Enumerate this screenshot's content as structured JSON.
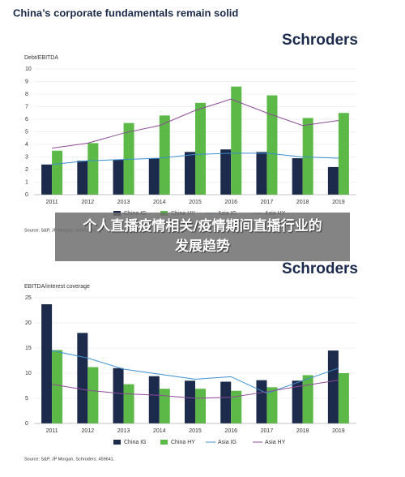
{
  "title": "China’s corporate fundamentals remain solid",
  "overlay": "个人直播疫情相关/疫情期间直播行业的发展趋势",
  "chart_data": [
    {
      "type": "bar",
      "brand": "Schroders",
      "y_label": "Debt/EBITDA",
      "source": "Source: S&P, JP Morgan, Schroders.",
      "categories": [
        "2011",
        "2012",
        "2013",
        "2014",
        "2015",
        "2016",
        "2017",
        "2018",
        "2019"
      ],
      "ylim": [
        0,
        10
      ],
      "yticks": [
        0,
        1,
        2,
        3,
        4,
        5,
        6,
        7,
        8,
        9,
        10
      ],
      "grid": true,
      "series": [
        {
          "name": "China IG",
          "type": "bar",
          "color": "#1c2b4b",
          "values": [
            2.4,
            2.7,
            2.8,
            2.9,
            3.4,
            3.6,
            3.4,
            2.9,
            2.2
          ]
        },
        {
          "name": "China HY",
          "type": "bar",
          "color": "#5cb847",
          "values": [
            3.5,
            4.1,
            5.7,
            6.3,
            7.3,
            8.6,
            7.9,
            6.1,
            6.5
          ]
        },
        {
          "name": "Asia IG",
          "type": "line",
          "color": "#3b8fd0",
          "values": [
            2.4,
            2.7,
            2.8,
            2.9,
            3.2,
            3.3,
            3.3,
            3.0,
            2.9
          ]
        },
        {
          "name": "Asia HY",
          "type": "line",
          "color": "#8e4a9a",
          "values": [
            3.7,
            4.1,
            4.9,
            5.5,
            6.7,
            7.6,
            6.5,
            5.5,
            5.9
          ]
        }
      ]
    },
    {
      "type": "bar",
      "brand": "Schroders",
      "y_label": "EBITDA/interest coverage",
      "source": "Source: S&P, JP Morgan, Schroders. 459641.",
      "categories": [
        "2011",
        "2012",
        "2013",
        "2014",
        "2015",
        "2016",
        "2017",
        "2018",
        "2019"
      ],
      "ylim": [
        0,
        25
      ],
      "yticks": [
        0,
        5,
        10,
        15,
        20,
        25
      ],
      "grid": true,
      "series": [
        {
          "name": "China IG",
          "type": "bar",
          "color": "#1c2b4b",
          "values": [
            23.7,
            18.0,
            11.0,
            9.4,
            8.5,
            8.3,
            8.6,
            8.5,
            14.5
          ]
        },
        {
          "name": "China HY",
          "type": "bar",
          "color": "#5cb847",
          "values": [
            14.6,
            11.2,
            7.8,
            6.9,
            6.9,
            6.5,
            7.2,
            9.6,
            10.0
          ]
        },
        {
          "name": "Asia IG",
          "type": "line",
          "color": "#3b8fd0",
          "values": [
            14.5,
            13.0,
            10.8,
            9.8,
            8.8,
            9.3,
            6.0,
            8.5,
            11.0
          ]
        },
        {
          "name": "Asia HY",
          "type": "line",
          "color": "#8e4a9a",
          "values": [
            7.8,
            6.6,
            5.9,
            5.6,
            5.0,
            5.2,
            6.3,
            7.5,
            8.6
          ]
        }
      ]
    }
  ]
}
